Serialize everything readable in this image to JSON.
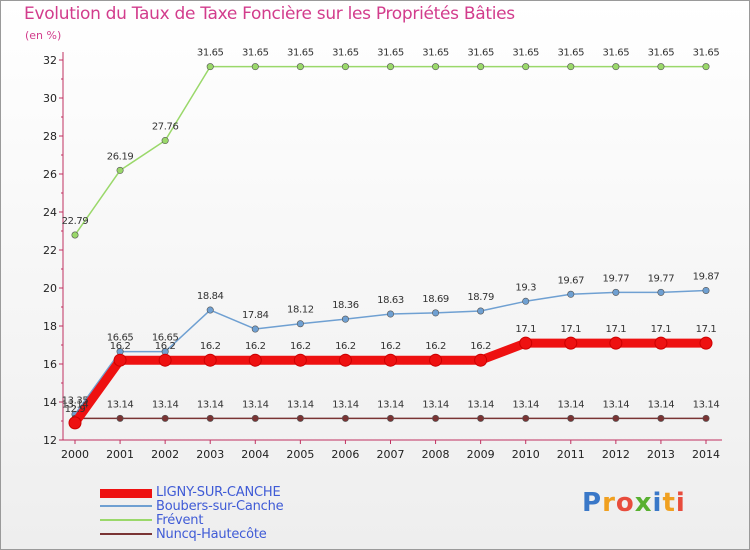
{
  "title": "Evolution du Taux de Taxe Foncière sur les Propriétés Bâties",
  "subtitle": "(en %)",
  "logo": "Proxiti",
  "chart_data": {
    "type": "line",
    "title": "Evolution du Taux de Taxe Foncière sur les Propriétés Bâties",
    "ylabel": "(en %)",
    "xlabel": "",
    "x": [
      "2000",
      "2001",
      "2002",
      "2003",
      "2004",
      "2005",
      "2006",
      "2007",
      "2008",
      "2009",
      "2010",
      "2011",
      "2012",
      "2013",
      "2014"
    ],
    "ylim": [
      12,
      32
    ],
    "yticks": [
      12,
      14,
      16,
      18,
      20,
      22,
      24,
      26,
      28,
      30,
      32
    ],
    "grid": false,
    "legend_position": "bottom-left",
    "series": [
      {
        "name": "LIGNY-SUR-CANCHE",
        "color": "#ee1111",
        "values": [
          12.9,
          16.2,
          16.2,
          16.2,
          16.2,
          16.2,
          16.2,
          16.2,
          16.2,
          16.2,
          17.1,
          17.1,
          17.1,
          17.1,
          17.1
        ],
        "labels": [
          "12.9",
          "16.2",
          "16.2",
          "16.2",
          "16.2",
          "16.2",
          "16.2",
          "16.2",
          "16.2",
          "16.2",
          "17.1",
          "17.1",
          "17.1",
          "17.1",
          "17.1"
        ]
      },
      {
        "name": "Boubers-sur-Canche",
        "color": "#6fa0d2",
        "values": [
          13.35,
          16.65,
          16.65,
          18.84,
          17.84,
          18.12,
          18.36,
          18.63,
          18.69,
          18.79,
          19.3,
          19.67,
          19.77,
          19.77,
          19.87
        ],
        "labels": [
          "13.35",
          "16.65",
          "16.65",
          "18.84",
          "17.84",
          "18.12",
          "18.36",
          "18.63",
          "18.69",
          "18.79",
          "19.3",
          "19.67",
          "19.77",
          "19.77",
          "19.87"
        ]
      },
      {
        "name": "Frévent",
        "color": "#9ad86a",
        "values": [
          22.79,
          26.19,
          27.76,
          31.65,
          31.65,
          31.65,
          31.65,
          31.65,
          31.65,
          31.65,
          31.65,
          31.65,
          31.65,
          31.65,
          31.65
        ],
        "labels": [
          "22.79",
          "26.19",
          "27.76",
          "31.65",
          "31.65",
          "31.65",
          "31.65",
          "31.65",
          "31.65",
          "31.65",
          "31.65",
          "31.65",
          "31.65",
          "31.65",
          "31.65"
        ]
      },
      {
        "name": "Nuncq-Hautecôte",
        "color": "#7a3434",
        "values": [
          13.14,
          13.14,
          13.14,
          13.14,
          13.14,
          13.14,
          13.14,
          13.14,
          13.14,
          13.14,
          13.14,
          13.14,
          13.14,
          13.14,
          13.14
        ],
        "labels": [
          "13.14",
          "13.14",
          "13.14",
          "13.14",
          "13.14",
          "13.14",
          "13.14",
          "13.14",
          "13.14",
          "13.14",
          "13.14",
          "13.14",
          "13.14",
          "13.14",
          "13.14"
        ]
      }
    ]
  }
}
